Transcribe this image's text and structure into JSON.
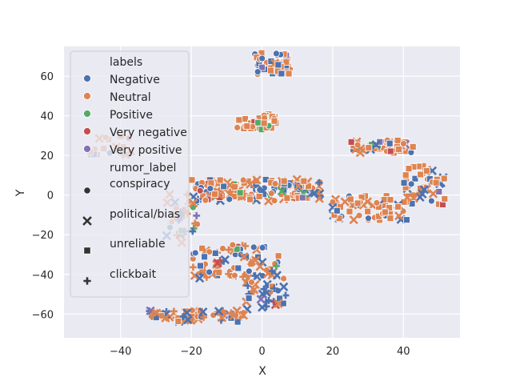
{
  "chart_data": {
    "type": "scatter",
    "title": "",
    "xlabel": "X",
    "ylabel": "Y",
    "xlim": [
      -56,
      56
    ],
    "ylim": [
      -72,
      75
    ],
    "xticks": [
      -40,
      -20,
      0,
      20,
      40
    ],
    "yticks": [
      -60,
      -40,
      -20,
      0,
      20,
      40,
      60
    ],
    "grid": true,
    "legend_position": "upper-left",
    "hue_title": "labels",
    "hue": [
      {
        "name": "Negative",
        "color": "#4c72b0"
      },
      {
        "name": "Neutral",
        "color": "#dd8452"
      },
      {
        "name": "Positive",
        "color": "#55a868"
      },
      {
        "name": "Very negative",
        "color": "#c44e52"
      },
      {
        "name": "Very positive",
        "color": "#8172b3"
      }
    ],
    "style_title": "rumor_label",
    "styles": [
      {
        "name": "conspiracy",
        "marker": "circle"
      },
      {
        "name": "political/bias",
        "marker": "x"
      },
      {
        "name": "unreliable",
        "marker": "square"
      },
      {
        "name": "clickbait",
        "marker": "plus"
      }
    ],
    "clusters": [
      {
        "x": [
          -2,
          8
        ],
        "y": [
          61,
          72
        ],
        "count": 55,
        "weights": [
          0.3,
          0.62,
          0.03,
          0.03,
          0.02
        ],
        "marker_weights": [
          0.35,
          0.05,
          0.6,
          0.0
        ]
      },
      {
        "x": [
          -7,
          4
        ],
        "y": [
          33,
          41
        ],
        "count": 35,
        "weights": [
          0.15,
          0.65,
          0.15,
          0.03,
          0.02
        ],
        "marker_weights": [
          0.3,
          0.05,
          0.65,
          0.0
        ]
      },
      {
        "x": [
          -49,
          -37
        ],
        "y": [
          20,
          30
        ],
        "count": 22,
        "weights": [
          0.1,
          0.8,
          0.05,
          0.02,
          0.03
        ],
        "marker_weights": [
          0.3,
          0.2,
          0.4,
          0.1
        ]
      },
      {
        "x": [
          25,
          43
        ],
        "y": [
          21,
          28
        ],
        "count": 55,
        "weights": [
          0.2,
          0.65,
          0.05,
          0.07,
          0.03
        ],
        "marker_weights": [
          0.25,
          0.25,
          0.5,
          0.0
        ]
      },
      {
        "x": [
          40,
          52
        ],
        "y": [
          -5,
          15
        ],
        "count": 50,
        "weights": [
          0.2,
          0.75,
          0.0,
          0.03,
          0.02
        ],
        "marker_weights": [
          0.2,
          0.3,
          0.5,
          0.0
        ]
      },
      {
        "x": [
          20,
          42
        ],
        "y": [
          -13,
          0
        ],
        "count": 60,
        "weights": [
          0.3,
          0.65,
          0.0,
          0.03,
          0.02
        ],
        "marker_weights": [
          0.25,
          0.35,
          0.4,
          0.0
        ]
      },
      {
        "x": [
          -20,
          17
        ],
        "y": [
          -3,
          8
        ],
        "count": 150,
        "weights": [
          0.3,
          0.6,
          0.05,
          0.03,
          0.02
        ],
        "marker_weights": [
          0.3,
          0.3,
          0.35,
          0.05
        ]
      },
      {
        "x": [
          -27,
          -18
        ],
        "y": [
          -25,
          2
        ],
        "count": 40,
        "weights": [
          0.3,
          0.5,
          0.1,
          0.05,
          0.05
        ],
        "marker_weights": [
          0.2,
          0.3,
          0.1,
          0.4
        ]
      },
      {
        "x": [
          -20,
          5
        ],
        "y": [
          -42,
          -25
        ],
        "count": 80,
        "weights": [
          0.35,
          0.55,
          0.02,
          0.05,
          0.03
        ],
        "marker_weights": [
          0.3,
          0.3,
          0.2,
          0.2
        ]
      },
      {
        "x": [
          -5,
          7
        ],
        "y": [
          -58,
          -42
        ],
        "count": 35,
        "weights": [
          0.55,
          0.4,
          0.0,
          0.03,
          0.02
        ],
        "marker_weights": [
          0.2,
          0.4,
          0.1,
          0.3
        ]
      },
      {
        "x": [
          -32,
          -5
        ],
        "y": [
          -64,
          -58
        ],
        "count": 60,
        "weights": [
          0.3,
          0.6,
          0.05,
          0.03,
          0.02
        ],
        "marker_weights": [
          0.1,
          0.4,
          0.1,
          0.4
        ]
      }
    ]
  }
}
